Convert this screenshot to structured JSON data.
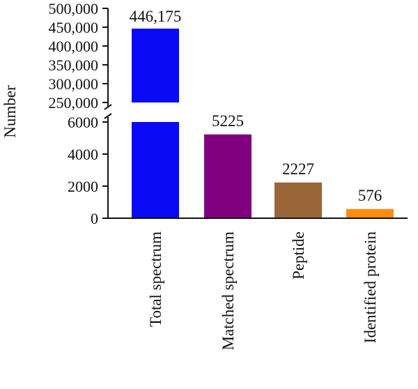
{
  "chart_data": {
    "type": "bar",
    "ylabel": "Number",
    "categories": [
      "Total spectrum",
      "Matched spectrum",
      "Peptide",
      "Identified protein"
    ],
    "values": [
      446175,
      5225,
      2227,
      576
    ],
    "data_labels": [
      "446,175",
      "5225",
      "2227",
      "576"
    ],
    "colors": [
      "#0a0af5",
      "#800080",
      "#9b6637",
      "#ff8c12"
    ],
    "axis_break": true,
    "ylim_lower": [
      0,
      6000
    ],
    "ylim_upper": [
      250000,
      500000
    ],
    "yticks_lower": [
      "0",
      "2000",
      "4000",
      "6000"
    ],
    "yticks_upper": [
      "250,000",
      "300,000",
      "350,000",
      "400,000",
      "450,000",
      "500,000"
    ],
    "grid": false,
    "legend": "none"
  }
}
